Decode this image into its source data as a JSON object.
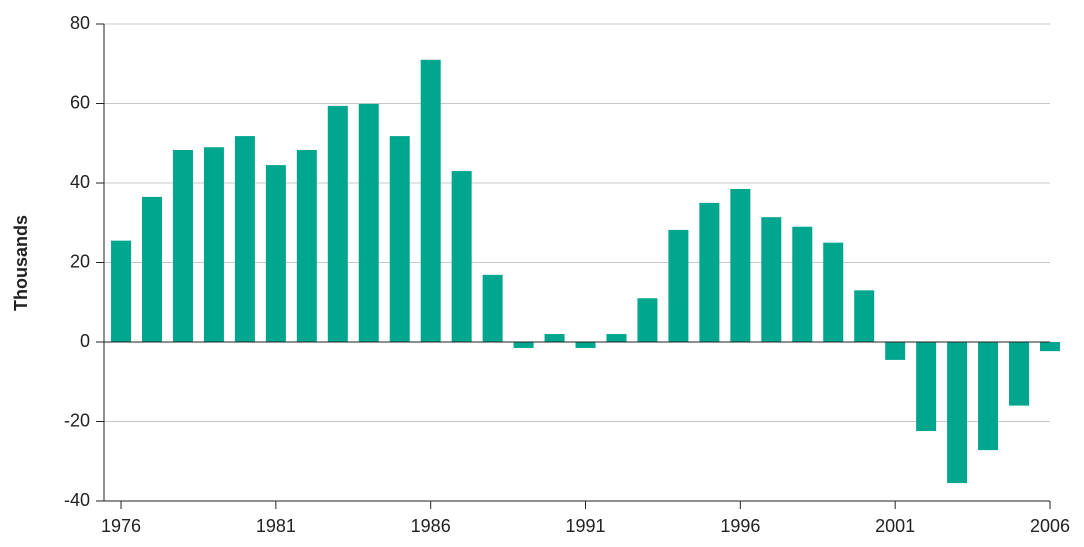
{
  "chart_data": {
    "type": "bar",
    "y_label": "Thousands",
    "x": [
      1976,
      1977,
      1978,
      1979,
      1980,
      1981,
      1982,
      1983,
      1984,
      1985,
      1986,
      1987,
      1988,
      1989,
      1990,
      1991,
      1992,
      1993,
      1994,
      1995,
      1996,
      1997,
      1998,
      1999,
      2000,
      2001,
      2002,
      2003,
      2004,
      2005,
      2006
    ],
    "values": [
      25.5,
      36.5,
      48.3,
      49,
      51.8,
      44.5,
      48.3,
      59.4,
      59.9,
      51.8,
      71,
      43,
      16.9,
      -1.5,
      2,
      -1.5,
      2,
      11,
      28.2,
      35,
      38.5,
      31.4,
      29,
      25,
      13,
      -4.5,
      -22.4,
      -35.5,
      -27.2,
      -16,
      -2.3
    ],
    "color": "#00a68e",
    "xlim": [
      1975.45,
      2006
    ],
    "xticks": [
      1976,
      1981,
      1986,
      1991,
      1996,
      2001,
      2006
    ],
    "ylim": [
      -40,
      80
    ],
    "yticks": [
      -40,
      -20,
      0,
      20,
      40,
      60,
      80
    ],
    "grid": true
  }
}
